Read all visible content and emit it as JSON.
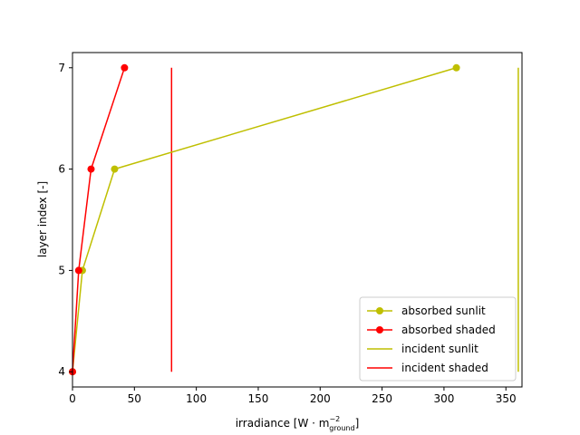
{
  "chart_data": {
    "type": "line",
    "title": "",
    "xlabel_main": "irradiance",
    "xlabel_unit_prefix": "[W · m",
    "xlabel_unit_sup": "−2",
    "xlabel_unit_sub": "ground",
    "xlabel_unit_suffix": "]",
    "ylabel": "layer index [-]",
    "xlim": [
      0,
      363
    ],
    "ylim": [
      3.85,
      7.15
    ],
    "xticks": [
      0,
      50,
      100,
      150,
      200,
      250,
      300,
      350
    ],
    "yticks": [
      4,
      5,
      6,
      7
    ],
    "grid": false,
    "legend_position": "lower-right",
    "series": [
      {
        "name": "absorbed sunlit",
        "color": "#bfbf00",
        "marker": "circle",
        "points": [
          {
            "x": 0,
            "y": 4
          },
          {
            "x": 8,
            "y": 5
          },
          {
            "x": 34,
            "y": 6
          },
          {
            "x": 310,
            "y": 7
          }
        ]
      },
      {
        "name": "absorbed shaded",
        "color": "#ff0000",
        "marker": "circle",
        "points": [
          {
            "x": 0,
            "y": 4
          },
          {
            "x": 5,
            "y": 5
          },
          {
            "x": 15,
            "y": 6
          },
          {
            "x": 42,
            "y": 7
          }
        ]
      },
      {
        "name": "incident sunlit",
        "color": "#bfbf00",
        "marker": "none",
        "points": [
          {
            "x": 360,
            "y": 4
          },
          {
            "x": 360,
            "y": 7
          }
        ]
      },
      {
        "name": "incident shaded",
        "color": "#ff0000",
        "marker": "none",
        "points": [
          {
            "x": 80,
            "y": 4
          },
          {
            "x": 80,
            "y": 7
          }
        ]
      }
    ]
  }
}
